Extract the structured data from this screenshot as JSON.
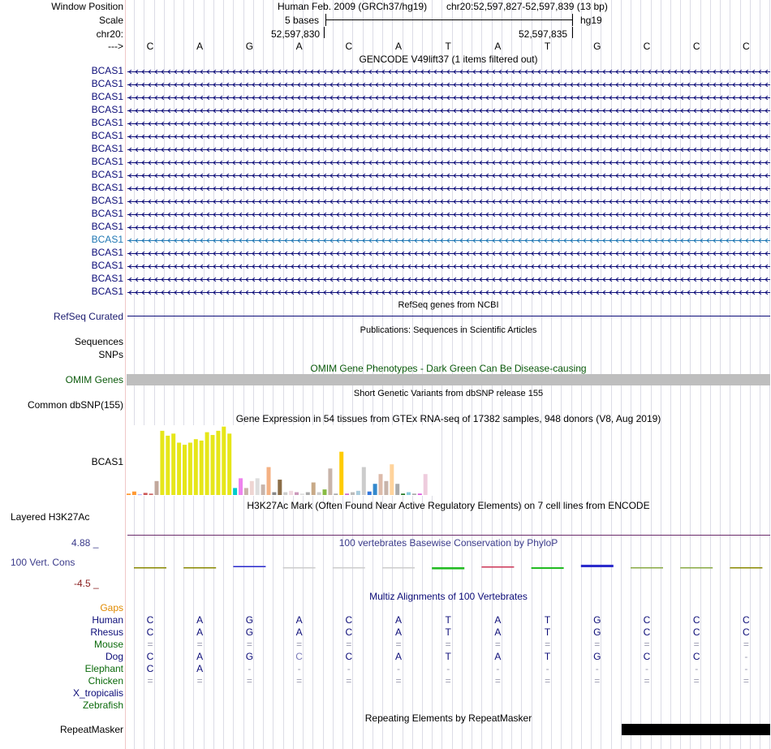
{
  "header": {
    "window_position_label": "Window Position",
    "scale_label": "Scale",
    "chrom_label": "chr20:",
    "strand_label": "--->",
    "assembly_title": "Human Feb. 2009 (GRCh37/hg19)",
    "position_text": "chr20:52,597,827-52,597,839 (13 bp)",
    "scale_bases": "5 bases",
    "scale_db": "hg19",
    "coord_left": "52,597,830",
    "coord_right": "52,597,835"
  },
  "bases": [
    "C",
    "A",
    "G",
    "A",
    "C",
    "A",
    "T",
    "A",
    "T",
    "G",
    "C",
    "C",
    "C"
  ],
  "gencode": {
    "title": "GENCODE V49lift37 (1 items filtered out)",
    "items": [
      "BCAS1",
      "BCAS1",
      "BCAS1",
      "BCAS1",
      "BCAS1",
      "BCAS1",
      "BCAS1",
      "BCAS1",
      "BCAS1",
      "BCAS1",
      "BCAS1",
      "BCAS1",
      "BCAS1",
      "BCAS1",
      "BCAS1",
      "BCAS1",
      "BCAS1",
      "BCAS1"
    ],
    "highlight_index": 13,
    "color": "#0c0c78",
    "highlight_color": "#1f77b4"
  },
  "refseq": {
    "title": "RefSeq genes from NCBI",
    "label": "RefSeq Curated"
  },
  "publications": {
    "title": "Publications: Sequences in Scientific Articles",
    "label_seq": "Sequences",
    "label_snps": "SNPs"
  },
  "omim": {
    "title": "OMIM Gene Phenotypes - Dark Green Can Be Disease-causing",
    "label": "OMIM Genes",
    "color": "#0b5a0b"
  },
  "dbsnp": {
    "title": "Short Genetic Variants from dbSNP release 155",
    "label": "Common dbSNP(155)"
  },
  "gtex": {
    "title": "Gene Expression in 54 tissues from GTEx RNA-seq of 17382 samples, 948 donors (V8, Aug 2019)",
    "label": "BCAS1",
    "values": [
      2,
      5,
      1,
      3,
      2,
      20,
      92,
      85,
      88,
      75,
      72,
      75,
      80,
      78,
      90,
      86,
      92,
      98,
      88,
      10,
      24,
      10,
      20,
      24,
      15,
      40,
      4,
      22,
      4,
      6,
      4,
      2,
      4,
      18,
      4,
      8,
      38,
      2,
      62,
      2,
      4,
      6,
      40,
      5,
      16,
      30,
      20,
      44,
      16,
      2,
      4,
      2,
      2,
      30
    ],
    "colors": [
      "#ff9933",
      "#ff9933",
      "#aaaaff",
      "#cc5555",
      "#cc6666",
      "#c2a89c",
      "#e6e619",
      "#e6e619",
      "#e6e619",
      "#e6e619",
      "#e6e619",
      "#e6e619",
      "#e6e619",
      "#e6e619",
      "#e6e619",
      "#e6e619",
      "#e6e619",
      "#e6e619",
      "#e6e619",
      "#00cccc",
      "#ee82ee",
      "#c8b4aa",
      "#eed5d2",
      "#dddddd",
      "#c8b4aa",
      "#f4b183",
      "#888888",
      "#8b6d47",
      "#cccccc",
      "#f0d8e0",
      "#cc99bb",
      "#dddddd",
      "#aaaaaa",
      "#c8a987",
      "#cccccc",
      "#88bb44",
      "#c8b4aa",
      "#aaaaaa",
      "#ffcc00",
      "#cc66cc",
      "#bbbbbb",
      "#aaccdd",
      "#cccccc",
      "#3377dd",
      "#3388cc",
      "#ddbbaa",
      "#c8b4aa",
      "#ffd39b",
      "#aaaaaa",
      "#227722",
      "#88ccdd",
      "#aaaaaa",
      "#dd55dd",
      "#eeccdd"
    ]
  },
  "h3k27ac": {
    "title": "H3K27Ac Mark (Often Found Near Active Regulatory Elements) on 7 cell lines from ENCODE",
    "label": "Layered H3K27Ac"
  },
  "phylop": {
    "title": "100 vertebrates Basewise Conservation by PhyloP",
    "label": "100 Vert. Cons",
    "max_label": "4.88 _",
    "min_label": "-4.5 _",
    "values": [
      -0.1,
      -0.01,
      0.3,
      -0.01,
      -0.01,
      0.0,
      -0.5,
      0.2,
      -0.4,
      0.6,
      -0.02,
      -0.02,
      -0.2
    ],
    "colors": [
      "#888800",
      "#888800",
      "#2b2bcc",
      "#cccccc",
      "#cccccc",
      "#cccccc",
      "#22bb22",
      "#cc3355",
      "#22bb22",
      "#2b2bcc",
      "#88aa44",
      "#88aa44",
      "#888800"
    ]
  },
  "multiz": {
    "title": "Multiz Alignments of 100 Vertebrates",
    "gaps_label": "Gaps",
    "species": [
      {
        "name": "Human",
        "color": "#0c0c78",
        "row": [
          "C",
          "A",
          "G",
          "A",
          "C",
          "A",
          "T",
          "A",
          "T",
          "G",
          "C",
          "C",
          "C"
        ]
      },
      {
        "name": "Rhesus",
        "color": "#0c0c78",
        "row": [
          "C",
          "A",
          "G",
          "A",
          "C",
          "A",
          "T",
          "A",
          "T",
          "G",
          "C",
          "C",
          "C"
        ]
      },
      {
        "name": "Mouse",
        "color": "#0b6a0b",
        "row": [
          "=",
          "=",
          "=",
          "=",
          "=",
          "=",
          "=",
          "=",
          "=",
          "=",
          "=",
          "=",
          "="
        ]
      },
      {
        "name": "Dog",
        "color": "#0c0c78",
        "row": [
          "C",
          "A",
          "G",
          "C",
          "C",
          "A",
          "T",
          "A",
          "T",
          "G",
          "C",
          "C",
          "-"
        ]
      },
      {
        "name": "Elephant",
        "color": "#0b6a0b",
        "row": [
          "C",
          "A",
          "-",
          "-",
          "-",
          "-",
          "-",
          "-",
          "-",
          "-",
          "-",
          "-",
          "-"
        ]
      },
      {
        "name": "Chicken",
        "color": "#0b6a0b",
        "row": [
          "=",
          "=",
          "=",
          "=",
          "=",
          "=",
          "=",
          "=",
          "=",
          "=",
          "=",
          "=",
          "="
        ]
      },
      {
        "name": "X_tropicalis",
        "color": "#0c0c78",
        "row": []
      },
      {
        "name": "Zebrafish",
        "color": "#0b6a0b",
        "row": []
      }
    ]
  },
  "repeatmasker": {
    "title": "Repeating Elements by RepeatMasker",
    "label": "RepeatMasker"
  }
}
